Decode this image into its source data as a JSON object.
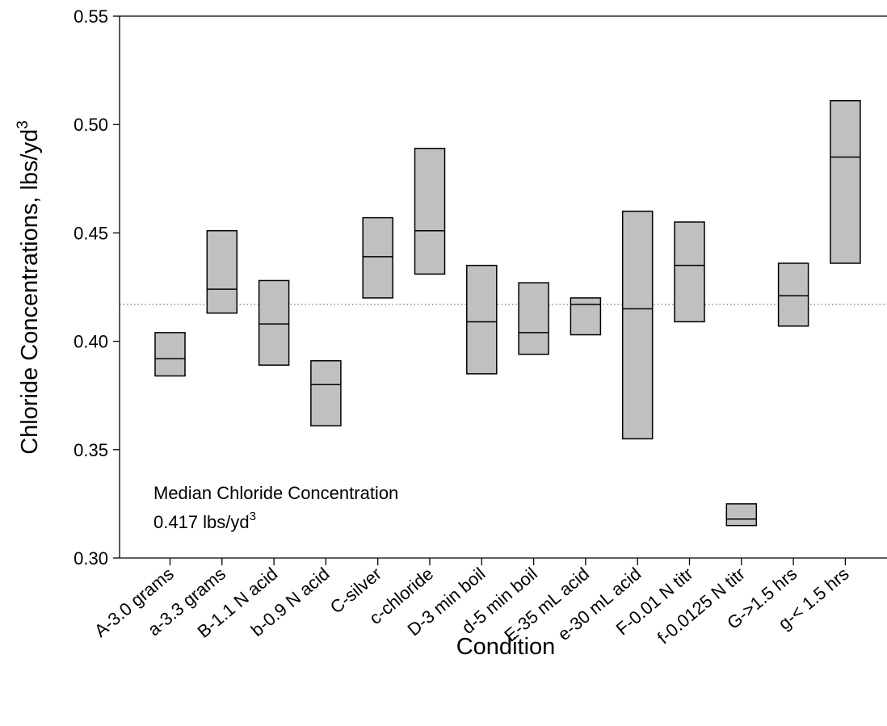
{
  "chart_data": {
    "type": "box",
    "xlabel": "Condition",
    "ylabel": "Chloride  Concentrations, lbs/yd",
    "ylabel_superscript": "3",
    "ylim": [
      0.3,
      0.55
    ],
    "yticks": [
      "0.30",
      "0.35",
      "0.40",
      "0.45",
      "0.50",
      "0.55"
    ],
    "grid": false,
    "legend": "none",
    "box_fill": "#c0c0c0",
    "categories": [
      "A-3.0 grams",
      "a-3.3 grams",
      "B-1.1 N acid",
      "b-0.9 N acid",
      "C-silver",
      "c-chloride",
      "D-3 min boil",
      "d-5 min boil",
      "E-35 mL acid",
      "e-30 mL acid",
      "F-0.01 N titr",
      "f-0.0125 N titr",
      "G->1.5 hrs",
      "g-< 1.5 hrs"
    ],
    "boxes": [
      {
        "low": 0.384,
        "median": 0.392,
        "high": 0.404
      },
      {
        "low": 0.413,
        "median": 0.424,
        "high": 0.451
      },
      {
        "low": 0.389,
        "median": 0.408,
        "high": 0.428
      },
      {
        "low": 0.361,
        "median": 0.38,
        "high": 0.391
      },
      {
        "low": 0.42,
        "median": 0.439,
        "high": 0.457
      },
      {
        "low": 0.431,
        "median": 0.451,
        "high": 0.489
      },
      {
        "low": 0.385,
        "median": 0.409,
        "high": 0.435
      },
      {
        "low": 0.394,
        "median": 0.404,
        "high": 0.427
      },
      {
        "low": 0.403,
        "median": 0.417,
        "high": 0.42
      },
      {
        "low": 0.355,
        "median": 0.415,
        "high": 0.46
      },
      {
        "low": 0.409,
        "median": 0.435,
        "high": 0.455
      },
      {
        "low": 0.315,
        "median": 0.318,
        "high": 0.325
      },
      {
        "low": 0.407,
        "median": 0.421,
        "high": 0.436
      },
      {
        "low": 0.436,
        "median": 0.485,
        "high": 0.511
      }
    ],
    "reference_line": {
      "value": 0.417,
      "style": "dotted"
    },
    "annotation": {
      "line1": "Median Chloride Concentration",
      "line2": "0.417 lbs/yd",
      "line2_superscript": "3"
    }
  }
}
